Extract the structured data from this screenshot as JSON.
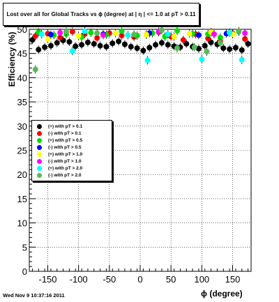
{
  "title": "Lost over all for Global Tracks vs ϕ (degree) at | η | <= 1.0 at pT > 0.11",
  "footer_timestamp": "Wed Nov  9 10:37:16 2011",
  "chart_data": {
    "type": "scatter",
    "title": "Lost over all for Global Tracks vs ϕ (degree) at | η | <= 1.0 at pT > 0.11",
    "xlabel": "ϕ (degree)",
    "ylabel": "Efficiency (%)",
    "xlim": [
      -180,
      180
    ],
    "ylim": [
      0,
      50
    ],
    "xticks": [
      -150,
      -100,
      -50,
      0,
      50,
      100,
      150
    ],
    "yticks": [
      0,
      5,
      10,
      15,
      20,
      25,
      30,
      35,
      40,
      45,
      50
    ],
    "grid": true,
    "legend_position": "middle-left",
    "series": [
      {
        "name": "(+) with pT > 0.1",
        "color": "#000000",
        "x": [
          -175,
          -165,
          -155,
          -145,
          -135,
          -125,
          -115,
          -105,
          -95,
          -85,
          -75,
          -65,
          -55,
          -45,
          -35,
          -25,
          -15,
          -5,
          5,
          15,
          25,
          35,
          45,
          55,
          65,
          75,
          85,
          95,
          105,
          115,
          125,
          135,
          145,
          155,
          165,
          175
        ],
        "y": [
          47.8,
          45.8,
          46.3,
          46.6,
          47.2,
          47.7,
          47.4,
          46.5,
          46.8,
          47.3,
          47.0,
          46.6,
          46.4,
          47.1,
          47.5,
          46.9,
          46.4,
          46.1,
          45.6,
          46.2,
          46.8,
          47.2,
          46.8,
          46.5,
          46.3,
          47.0,
          46.4,
          46.0,
          46.6,
          47.3,
          46.9,
          46.1,
          45.9,
          46.2,
          45.7,
          47.0
        ]
      },
      {
        "name": "(-) with pT > 0.1",
        "color": "#ff0000",
        "x": [
          -170,
          -150,
          -130,
          -110,
          -90,
          -70,
          -50,
          -30,
          -10,
          10,
          30,
          50,
          70,
          90,
          110,
          130,
          150,
          170
        ],
        "y": [
          48.6,
          49.1,
          48.3,
          49.5,
          49.0,
          48.2,
          49.2,
          48.7,
          48.4,
          48.9,
          49.4,
          48.5,
          47.8,
          49.0,
          48.1,
          47.5,
          49.2,
          48.0
        ]
      },
      {
        "name": "(+) with pT > 0.5",
        "color": "#00dd00",
        "x": [
          -165,
          -140,
          -120,
          -95,
          -80,
          -55,
          -30,
          -5,
          20,
          40,
          60,
          85,
          110,
          130,
          160
        ],
        "y": [
          49.4,
          48.8,
          49.0,
          48.4,
          49.3,
          48.9,
          49.6,
          48.7,
          49.2,
          48.5,
          49.7,
          49.1,
          49.0,
          48.3,
          49.5
        ]
      },
      {
        "name": "(-) with pT > 0.5",
        "color": "#0000ff",
        "x": [
          -145,
          -60,
          15,
          95,
          140
        ],
        "y": [
          48.9,
          49.0,
          49.2,
          48.8,
          49.1
        ]
      },
      {
        "name": "(+) with pT > 1.0",
        "color": "#ffff00",
        "x": [
          -150,
          -100,
          -40,
          10,
          55,
          80,
          115,
          150
        ],
        "y": [
          48.0,
          48.6,
          49.2,
          48.9,
          48.5,
          49.1,
          49.4,
          49.0
        ]
      },
      {
        "name": "(-) with pT > 1.0",
        "color": "#ff00ff",
        "x": [
          -130,
          -60,
          30,
          120,
          170
        ],
        "y": [
          49.3,
          48.8,
          49.5,
          49.0,
          49.2
        ]
      },
      {
        "name": "(+) with pT > 2.0",
        "color": "#00ffff",
        "x": [
          -160,
          -110,
          -90,
          -20,
          12,
          45,
          100,
          145,
          165
        ],
        "y": [
          49.0,
          45.5,
          49.6,
          48.8,
          43.6,
          49.0,
          43.8,
          49.3,
          43.7
        ]
      },
      {
        "name": "(-) with pT > 2.0",
        "color": "#55bb55",
        "x": [
          -170,
          -120,
          -70,
          -10,
          35,
          60,
          88,
          108,
          130,
          160
        ],
        "y": [
          41.7,
          49.5,
          49.2,
          48.9,
          49.8,
          46.1,
          46.3,
          45.4,
          47.2,
          49.6
        ]
      }
    ]
  }
}
